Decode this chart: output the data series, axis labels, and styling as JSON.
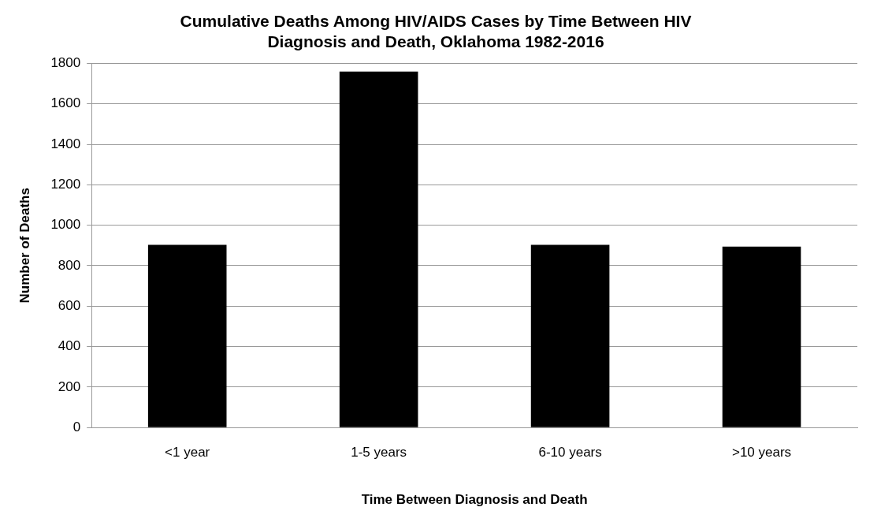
{
  "chart_data": {
    "type": "bar",
    "title": [
      "Cumulative Deaths Among HIV/AIDS Cases by Time Between HIV",
      "Diagnosis and Death, Oklahoma 1982-2016"
    ],
    "xlabel": "Time Between Diagnosis and Death",
    "ylabel": "Number of Deaths",
    "categories": [
      "<1 year",
      "1-5 years",
      "6-10 years",
      ">10 years"
    ],
    "values": [
      903,
      1760,
      903,
      894
    ],
    "color": "#000000",
    "ylim": [
      0,
      1800
    ],
    "yticks": [
      0,
      200,
      400,
      600,
      800,
      1000,
      1200,
      1400,
      1600,
      1800
    ],
    "grid": "y",
    "legend": false
  }
}
